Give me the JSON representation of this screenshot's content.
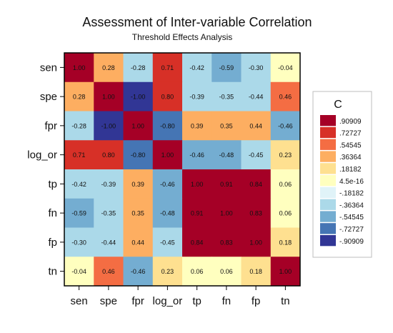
{
  "chart_data": {
    "type": "heatmap",
    "title": "Assessment of Inter-variable Correlation",
    "subtitle": "Threshold Effects Analysis",
    "variables": [
      "sen",
      "spe",
      "fpr",
      "log_or",
      "tp",
      "fn",
      "fp",
      "tn"
    ],
    "values": [
      [
        1.0,
        0.28,
        -0.28,
        0.71,
        -0.42,
        -0.59,
        -0.3,
        -0.04
      ],
      [
        0.28,
        1.0,
        -1.0,
        0.8,
        -0.39,
        -0.35,
        -0.44,
        0.46
      ],
      [
        -0.28,
        -1.0,
        1.0,
        -0.8,
        0.39,
        0.35,
        0.44,
        -0.46
      ],
      [
        0.71,
        0.8,
        -0.8,
        1.0,
        -0.46,
        -0.48,
        -0.45,
        0.23
      ],
      [
        -0.42,
        -0.39,
        0.39,
        -0.46,
        1.0,
        0.91,
        0.84,
        0.06
      ],
      [
        -0.59,
        -0.35,
        0.35,
        -0.48,
        0.91,
        1.0,
        0.83,
        0.06
      ],
      [
        -0.3,
        -0.44,
        0.44,
        -0.45,
        0.84,
        0.83,
        1.0,
        0.18
      ],
      [
        -0.04,
        0.46,
        -0.46,
        0.23,
        0.06,
        0.06,
        0.18,
        1.0
      ]
    ],
    "labels": [
      [
        "1.00",
        "0.28",
        "-0.28",
        "0.71",
        "-0.42",
        "-0.59",
        "-0.30",
        "-0.04"
      ],
      [
        "0.28",
        "1.00",
        "-1.00",
        "0.80",
        "-0.39",
        "-0.35",
        "-0.44",
        "0.46"
      ],
      [
        "-0.28",
        "-1.00",
        "1.00",
        "-0.80",
        "0.39",
        "0.35",
        "0.44",
        "-0.46"
      ],
      [
        "0.71",
        "0.80",
        "-0.80",
        "1.00",
        "-0.46",
        "-0.48",
        "-0.45",
        "0.23"
      ],
      [
        "-0.42",
        "-0.39",
        "0.39",
        "-0.46",
        "1.00",
        "0.91",
        "0.84",
        "0.06"
      ],
      [
        "-0.59",
        "-0.35",
        "0.35",
        "-0.48",
        "0.91",
        "1.00",
        "0.83",
        "0.06"
      ],
      [
        "-0.30",
        "-0.44",
        "0.44",
        "-0.45",
        "0.84",
        "0.83",
        "1.00",
        "0.18"
      ],
      [
        "-0.04",
        "0.46",
        "-0.46",
        "0.23",
        "0.06",
        "0.06",
        "0.18",
        "1.00"
      ]
    ],
    "legend": {
      "title": "C",
      "position": "right",
      "entries": [
        {
          "label": ".90909",
          "color": "#a50026"
        },
        {
          "label": ".72727",
          "color": "#d73027"
        },
        {
          "label": ".54545",
          "color": "#f46d43"
        },
        {
          "label": ".36364",
          "color": "#fdae61"
        },
        {
          "label": ".18182",
          "color": "#fee090"
        },
        {
          "label": "4.5e-16",
          "color": "#ffffbf"
        },
        {
          "label": "-.18182",
          "color": "#e0f3f8"
        },
        {
          "label": "-.36364",
          "color": "#abd9e9"
        },
        {
          "label": "-.54545",
          "color": "#74add1"
        },
        {
          "label": "-.72727",
          "color": "#4575b4"
        },
        {
          "label": "-.90909",
          "color": "#313695"
        }
      ]
    },
    "colors": {
      "background": "#ffffff",
      "plot_border": "#000000"
    }
  }
}
